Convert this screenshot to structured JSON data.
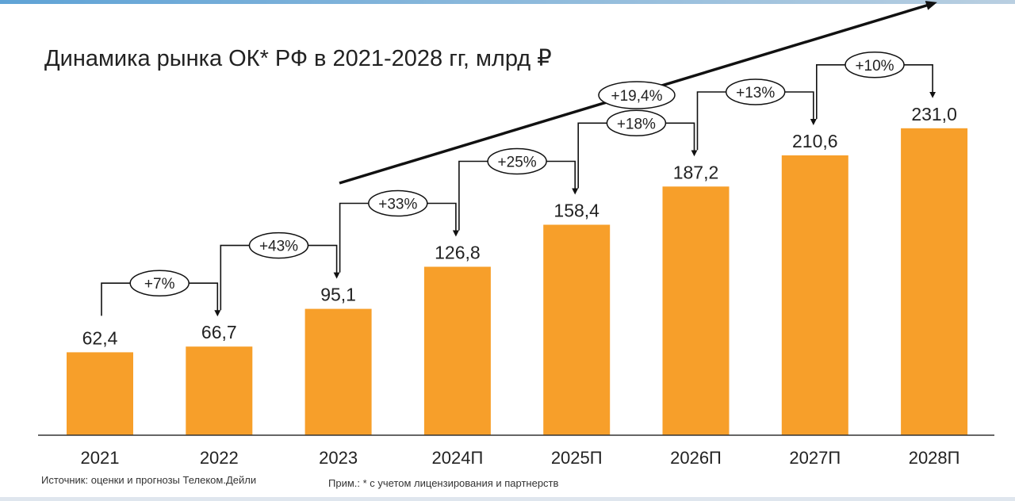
{
  "chart_data": {
    "type": "bar",
    "title": "Динамика рынка ОК* РФ в 2021-2028 гг, млрд ₽",
    "categories": [
      "2021",
      "2022",
      "2023",
      "2024П",
      "2025П",
      "2026П",
      "2027П",
      "2028П"
    ],
    "values": [
      62.4,
      66.7,
      95.1,
      126.8,
      158.4,
      187.2,
      210.6,
      231.0
    ],
    "data_labels": [
      "62,4",
      "66,7",
      "95,1",
      "126,8",
      "158,4",
      "187,2",
      "210,6",
      "231,0"
    ],
    "growth_labels": [
      "+7%",
      "+43%",
      "+33%",
      "+25%",
      "+18%",
      "+13%",
      "+10%"
    ],
    "cagr_label": "+19,4%",
    "ylim": [
      0,
      240
    ],
    "grid": false,
    "colors": {
      "bar": "#F79F2A",
      "text": "#222222",
      "arrow": "#111111"
    }
  },
  "footer": {
    "source": "Источник: оценки и прогнозы Телеком.Дейли",
    "note": "Прим.: * с учетом лицензирования и партнерств"
  }
}
